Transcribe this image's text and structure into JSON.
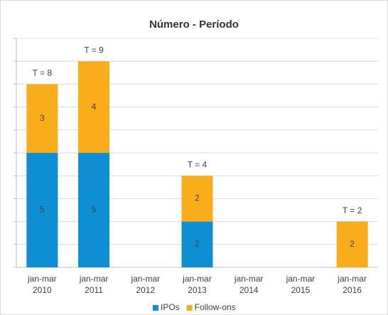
{
  "chart_data": {
    "type": "stacked_bar",
    "title": "Número - Período",
    "categories": [
      "jan-mar 2010",
      "jan-mar 2011",
      "jan-mar 2012",
      "jan-mar 2013",
      "jan-mar 2014",
      "jan-mar 2015",
      "jan-mar 2016"
    ],
    "series": [
      {
        "name": "IPOs",
        "color": "#0f8fd3",
        "values": [
          5,
          5,
          0,
          2,
          0,
          0,
          0
        ]
      },
      {
        "name": "Follow-ons",
        "color": "#f9ad1a",
        "values": [
          3,
          4,
          0,
          2,
          0,
          0,
          2
        ]
      }
    ],
    "total_labels": [
      "T = 8",
      "T = 9",
      null,
      "T = 4",
      null,
      null,
      "T = 2"
    ],
    "ylim": [
      0,
      10
    ],
    "yticks": [
      0,
      1,
      2,
      3,
      4,
      5,
      6,
      7,
      8,
      9,
      10
    ],
    "grid": true,
    "legend": "bottom"
  }
}
